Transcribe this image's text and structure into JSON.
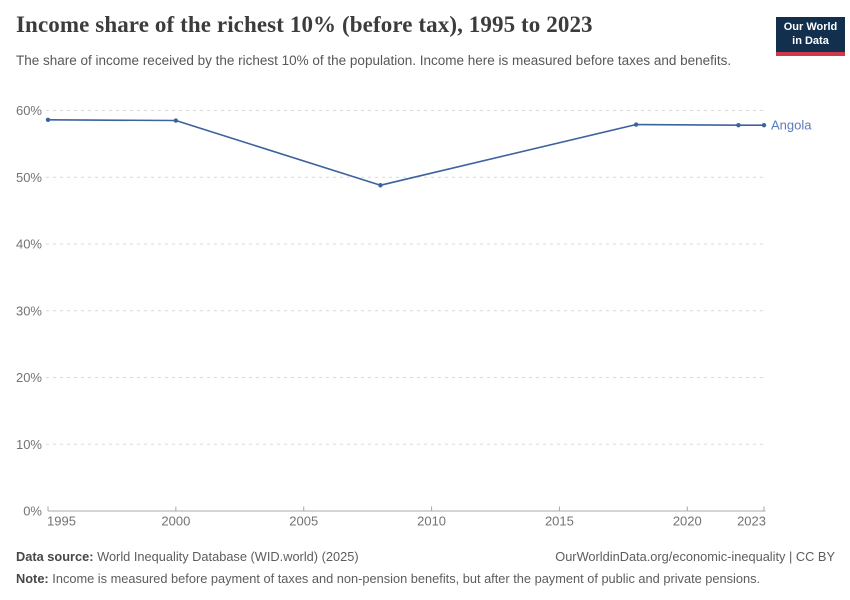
{
  "header": {
    "title": "Income share of the richest 10% (before tax), 1995 to 2023",
    "subtitle": "The share of income received by the richest 10% of the population. Income here is measured before taxes and benefits.",
    "logo": {
      "line1": "Our World",
      "line2": "in Data",
      "bg_color": "#12304e",
      "accent_color": "#d0394b"
    }
  },
  "chart_data": {
    "type": "line",
    "title": "Income share of the richest 10% (before tax), 1995 to 2023",
    "series": [
      {
        "name": "Angola",
        "points": [
          [
            1995,
            58.6
          ],
          [
            2000,
            58.5
          ],
          [
            2008,
            48.8
          ],
          [
            2018,
            57.9
          ],
          [
            2022,
            57.8
          ],
          [
            2023,
            57.8
          ]
        ]
      }
    ],
    "xlim": [
      1995,
      2023
    ],
    "ylim": [
      0,
      60
    ],
    "xticks": [
      1995,
      2000,
      2005,
      2010,
      2015,
      2020,
      2023
    ],
    "yticks": [
      0,
      10,
      20,
      30,
      40,
      50,
      60
    ],
    "ytick_suffix": "%",
    "grid": true,
    "legend_position": "end-of-line",
    "line_color": "#3d639d",
    "marker_color": "#3d639d",
    "entity_label_color": "#5b7cb8",
    "gridline_color": "#d9d9d9",
    "axis_color": "#a8a8a8",
    "tick_label_color": "#737373"
  },
  "footer": {
    "data_source_label": "Data source:",
    "data_source_value": "World Inequality Database (WID.world) (2025)",
    "credit": "OurWorldinData.org/economic-inequality | CC BY",
    "note_label": "Note:",
    "note_value": "Income is measured before payment of taxes and non-pension benefits, but after the payment of public and private pensions."
  }
}
